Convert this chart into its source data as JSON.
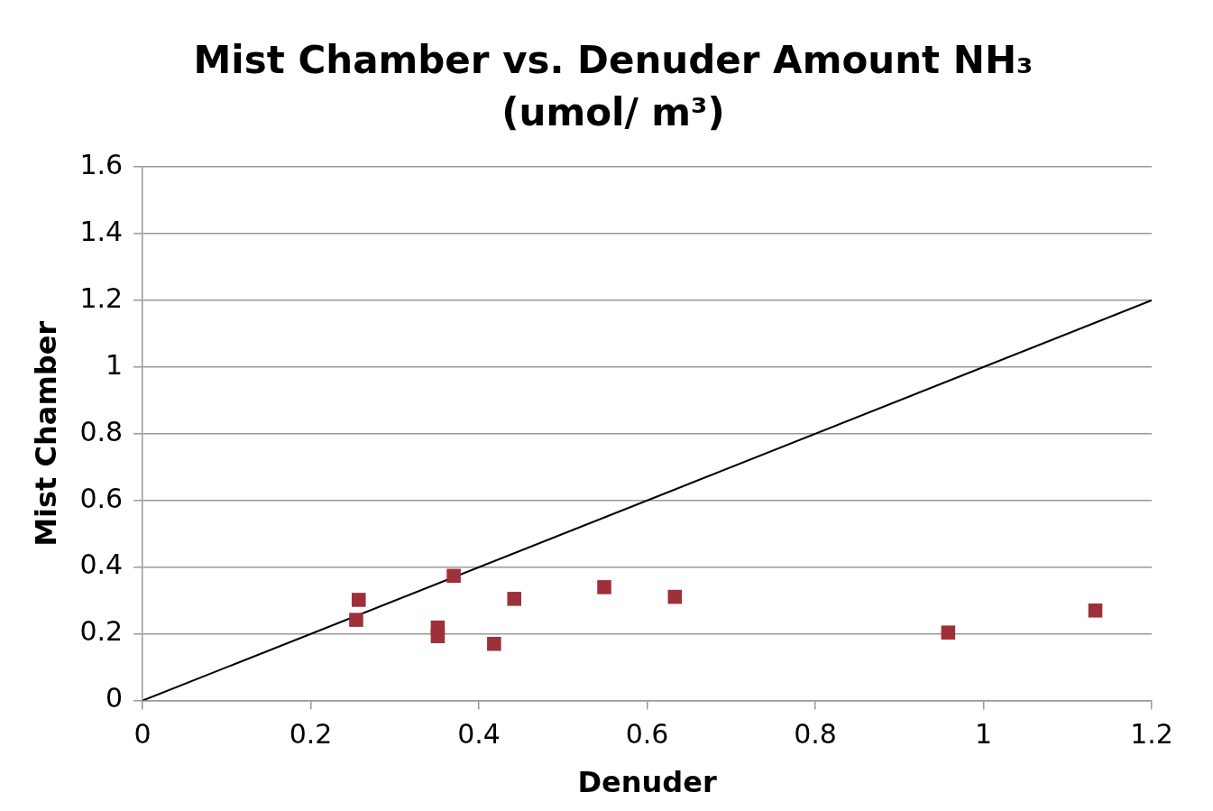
{
  "chart_data": {
    "type": "scatter",
    "title": "Mist Chamber vs. Denuder Amount NH₃ (umol/ m³)",
    "xlabel": "Denuder",
    "ylabel": "Mist Chamber",
    "series": [
      {
        "color": "#9e3039",
        "x": [
          0.254,
          0.257,
          0.351,
          0.351,
          0.37,
          0.418,
          0.442,
          0.549,
          0.633,
          0.958,
          1.133
        ],
        "values": [
          0.242,
          0.302,
          0.193,
          0.219,
          0.374,
          0.17,
          0.305,
          0.34,
          0.311,
          0.204,
          0.27
        ]
      },
      {
        "type": "line",
        "color": "#000000",
        "marker": "none",
        "x": [
          0,
          1.2
        ],
        "values": [
          0,
          1.2
        ]
      }
    ],
    "xlim": [
      0,
      1.2
    ],
    "xticks": [
      0,
      0.2,
      0.4,
      0.6,
      0.8,
      {
        "value": 1,
        "label": "1"
      },
      1.2
    ],
    "ylim": [
      0,
      1.6
    ],
    "yticks": [
      0,
      0.2,
      0.4,
      0.6,
      0.8,
      {
        "value": 1,
        "label": "1"
      },
      1.2,
      1.4,
      1.6
    ],
    "grid": "y",
    "legend": false,
    "marker": "square"
  }
}
